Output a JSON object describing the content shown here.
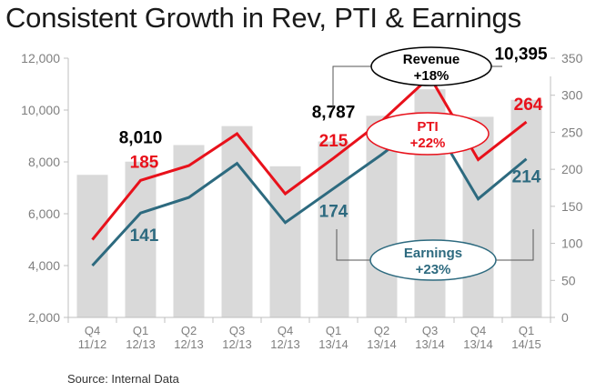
{
  "chart_data": {
    "type": "bar",
    "title": "Consistent Growth in Rev, PTI & Earnings",
    "source": "Source: Internal Data",
    "categories": [
      [
        "Q4",
        "11/12"
      ],
      [
        "Q1",
        "12/13"
      ],
      [
        "Q2",
        "12/13"
      ],
      [
        "Q3",
        "12/13"
      ],
      [
        "Q4",
        "12/13"
      ],
      [
        "Q1",
        "13/14"
      ],
      [
        "Q2",
        "13/14"
      ],
      [
        "Q3",
        "13/14"
      ],
      [
        "Q4",
        "13/14"
      ],
      [
        "Q1",
        "14/15"
      ]
    ],
    "left_axis": {
      "ticks": [
        "2,000",
        "4,000",
        "6,000",
        "8,000",
        "10,000",
        "12,000"
      ],
      "ylim": [
        2000,
        12000
      ]
    },
    "right_axis": {
      "ticks": [
        "0",
        "50",
        "100",
        "150",
        "200",
        "250",
        "300",
        "350"
      ],
      "ylim": [
        0,
        350
      ]
    },
    "series": [
      {
        "name": "Revenue",
        "type": "bar",
        "axis": "left",
        "color": "#d9d9d9",
        "values": [
          7500,
          8010,
          8650,
          9380,
          7830,
          8787,
          9780,
          10800,
          9740,
          10395
        ]
      },
      {
        "name": "PTI",
        "type": "line",
        "axis": "right",
        "color": "#e8111b",
        "values": [
          105,
          185,
          205,
          248,
          167,
          215,
          265,
          325,
          213,
          264
        ]
      },
      {
        "name": "Earnings",
        "type": "line",
        "axis": "right",
        "color": "#2d6a7f",
        "values": [
          70,
          141,
          162,
          208,
          128,
          174,
          220,
          270,
          160,
          214
        ]
      }
    ],
    "data_labels": [
      {
        "text": "8,010",
        "series": "Revenue",
        "index": 1,
        "color": "#000000"
      },
      {
        "text": "8,787",
        "series": "Revenue",
        "index": 5,
        "color": "#000000"
      },
      {
        "text": "10,395",
        "series": "Revenue",
        "index": 9,
        "color": "#000000"
      },
      {
        "text": "185",
        "series": "PTI",
        "index": 1,
        "color": "#e8111b"
      },
      {
        "text": "215",
        "series": "PTI",
        "index": 5,
        "color": "#e8111b"
      },
      {
        "text": "264",
        "series": "PTI",
        "index": 9,
        "color": "#e8111b"
      },
      {
        "text": "141",
        "series": "Earnings",
        "index": 1,
        "color": "#2d6a7f"
      },
      {
        "text": "174",
        "series": "Earnings",
        "index": 5,
        "color": "#2d6a7f"
      },
      {
        "text": "214",
        "series": "Earnings",
        "index": 9,
        "color": "#2d6a7f"
      }
    ],
    "annotations": [
      {
        "series": "Revenue",
        "line1": "Revenue",
        "line2": "+18%",
        "color": "#000000"
      },
      {
        "series": "PTI",
        "line1": "PTI",
        "line2": "+22%",
        "color": "#e8111b"
      },
      {
        "series": "Earnings",
        "line1": "Earnings",
        "line2": "+23%",
        "color": "#2d6a7f"
      }
    ]
  }
}
